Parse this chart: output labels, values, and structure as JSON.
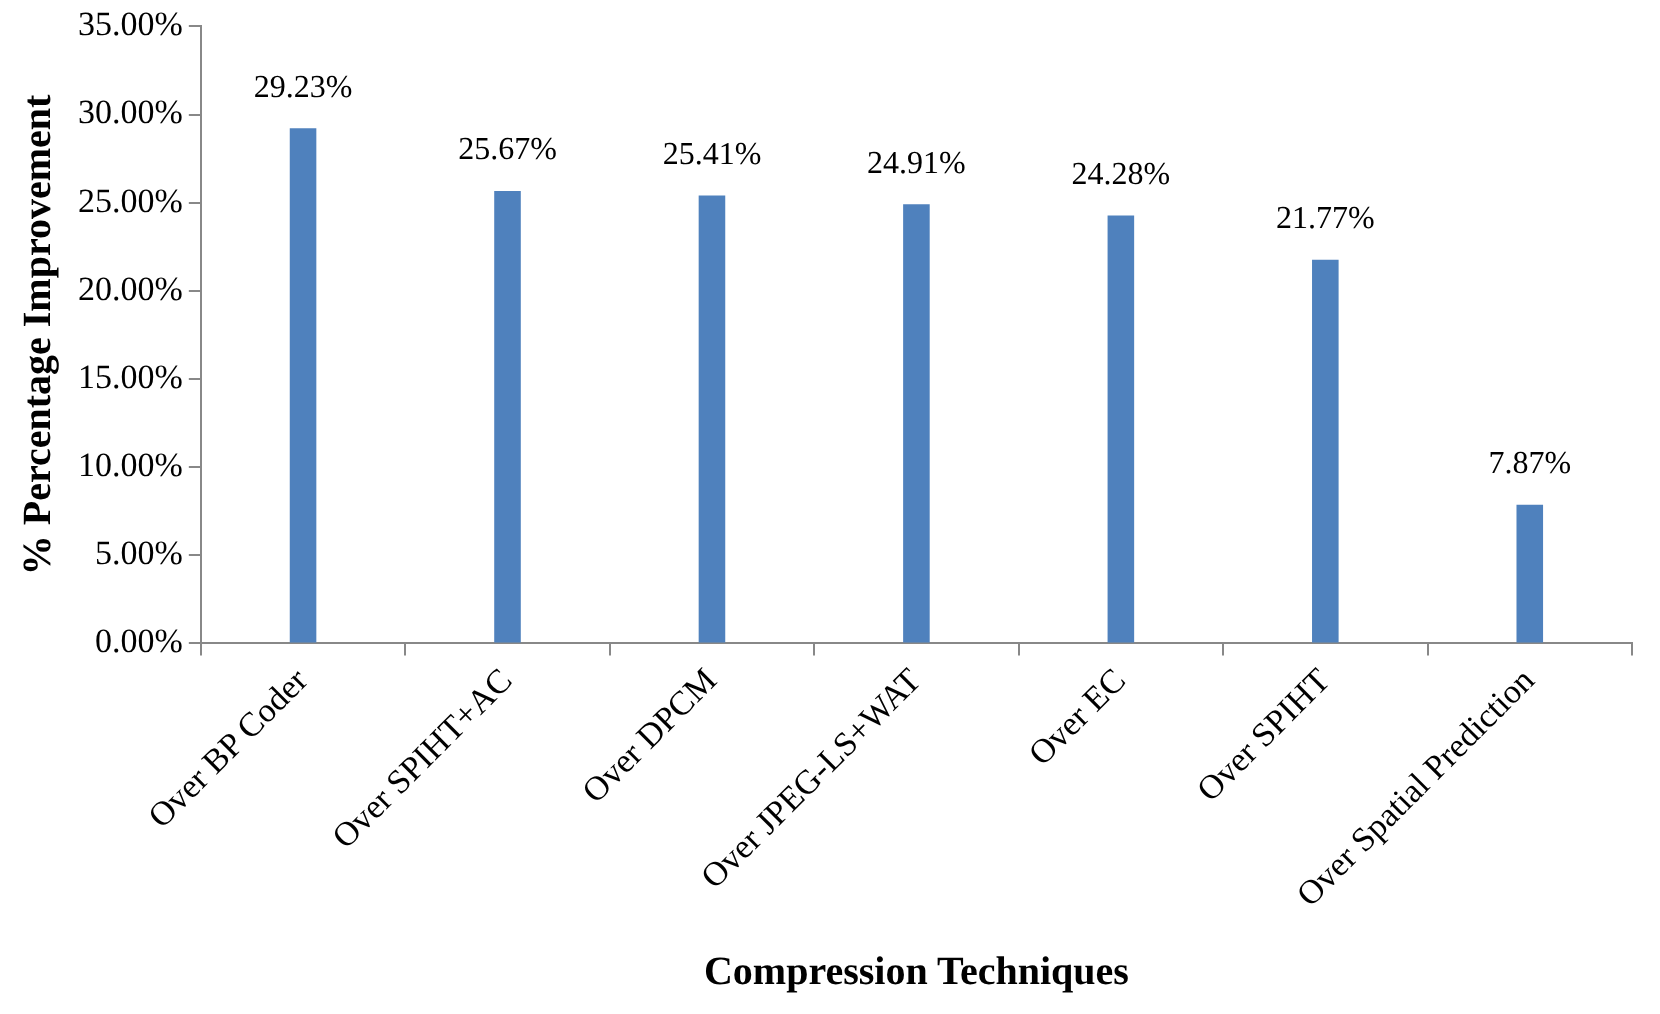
{
  "chart_data": {
    "type": "bar",
    "xlabel": "Compression Techniques",
    "ylabel": "% Percentage Improvement",
    "categories": [
      "Over BP Coder",
      "Over SPIHT+AC",
      "Over DPCM",
      "Over JPEG-LS+WAT",
      "Over EC",
      "Over SPIHT",
      "Over Spatial Prediction"
    ],
    "values": [
      29.23,
      25.67,
      25.41,
      24.91,
      24.28,
      21.77,
      7.87
    ],
    "value_labels": [
      "29.23%",
      "25.67%",
      "25.41%",
      "24.91%",
      "24.28%",
      "21.77%",
      "7.87%"
    ],
    "color": "#4f81bd",
    "ylim": [
      0,
      35
    ],
    "yticks": [
      {
        "value": 0,
        "label": "0.00%"
      },
      {
        "value": 5,
        "label": "5.00%"
      },
      {
        "value": 10,
        "label": "10.00%"
      },
      {
        "value": 15,
        "label": "15.00%"
      },
      {
        "value": 20,
        "label": "20.00%"
      },
      {
        "value": 25,
        "label": "25.00%"
      },
      {
        "value": 30,
        "label": "30.00%"
      },
      {
        "value": 35,
        "label": "35.00%"
      }
    ],
    "grid": false,
    "legend": false
  }
}
